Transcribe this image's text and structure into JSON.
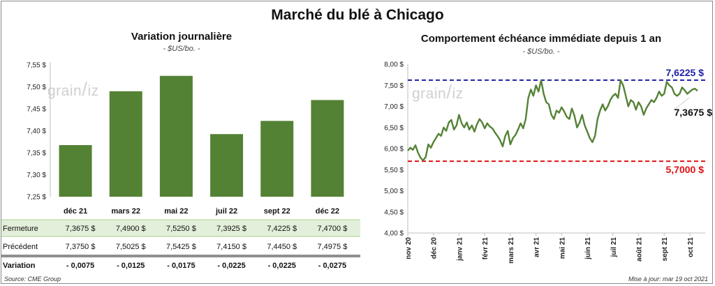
{
  "title": "Marché du blé à Chicago",
  "colors": {
    "bar": "#548235",
    "line": "#548235",
    "max": "#1f1fa8",
    "min": "#e01010",
    "neg": "#e01010",
    "row_bg": "#e2efda"
  },
  "watermark": {
    "left": "grain",
    "slash": "/",
    "right": "iz"
  },
  "footer": {
    "source": "Source: CME Group",
    "updated": "Mise à jour: mar 19 oct 2021"
  },
  "chart_data": [
    {
      "type": "bar",
      "title": "Variation journalière",
      "unit": "- $US/bo. -",
      "categories": [
        "déc 21",
        "mars 22",
        "mai 22",
        "juil 22",
        "sept 22",
        "déc 22"
      ],
      "values": [
        7.3675,
        7.49,
        7.525,
        7.3925,
        7.4225,
        7.47
      ],
      "ylim": [
        7.25,
        7.55
      ],
      "yticks": [
        "7,25 $",
        "7,30 $",
        "7,35 $",
        "7,40 $",
        "7,45 $",
        "7,50 $",
        "7,55 $"
      ],
      "table": {
        "rows": [
          {
            "label": "Fermeture",
            "values": [
              "7,3675  $",
              "7,4900  $",
              "7,5250  $",
              "7,3925  $",
              "7,4225  $",
              "7,4700  $"
            ]
          },
          {
            "label": "Précédent",
            "values": [
              "7,3750  $",
              "7,5025  $",
              "7,5425  $",
              "7,4150  $",
              "7,4450  $",
              "7,4975  $"
            ]
          },
          {
            "label": "Variation",
            "values": [
              "- 0,0075",
              "- 0,0125",
              "- 0,0175",
              "- 0,0225",
              "- 0,0225",
              "- 0,0275"
            ]
          }
        ]
      }
    },
    {
      "type": "line",
      "title": "Comportement  échéance immédiate depuis 1 an",
      "unit": "- $US/bo. -",
      "ylim": [
        4.0,
        8.0
      ],
      "yticks": [
        "4,00 $",
        "4,50 $",
        "5,00 $",
        "5,50 $",
        "6,00 $",
        "6,50 $",
        "7,00 $",
        "7,50 $",
        "8,00 $"
      ],
      "xlim": [
        0,
        11.6
      ],
      "xticks": [
        {
          "x": 0,
          "label": "nov 20"
        },
        {
          "x": 1,
          "label": "déc 20"
        },
        {
          "x": 2,
          "label": "janv 21"
        },
        {
          "x": 3,
          "label": "févr 21"
        },
        {
          "x": 4,
          "label": "mars 21"
        },
        {
          "x": 5,
          "label": "avr 21"
        },
        {
          "x": 6,
          "label": "mai 21"
        },
        {
          "x": 7,
          "label": "juin 21"
        },
        {
          "x": 8,
          "label": "juil 21"
        },
        {
          "x": 9,
          "label": "août 21"
        },
        {
          "x": 10,
          "label": "sept 21"
        },
        {
          "x": 11,
          "label": "oct 21"
        }
      ],
      "series": [
        {
          "x": [
            0,
            0.1,
            0.2,
            0.3,
            0.4,
            0.5,
            0.6,
            0.7,
            0.8,
            0.9,
            1.0,
            1.1,
            1.2,
            1.3,
            1.4,
            1.5,
            1.6,
            1.7,
            1.8,
            1.9,
            2.0,
            2.1,
            2.2,
            2.3,
            2.4,
            2.5,
            2.6,
            2.7,
            2.8,
            2.9,
            3.0,
            3.1,
            3.2,
            3.3,
            3.4,
            3.5,
            3.6,
            3.7,
            3.8,
            3.9,
            4.0,
            4.1,
            4.2,
            4.3,
            4.4,
            4.5,
            4.6,
            4.7,
            4.8,
            4.9,
            5.0,
            5.1,
            5.2,
            5.3,
            5.4,
            5.5,
            5.6,
            5.7,
            5.8,
            5.9,
            6.0,
            6.1,
            6.2,
            6.3,
            6.4,
            6.5,
            6.6,
            6.7,
            6.8,
            6.9,
            7.0,
            7.1,
            7.2,
            7.3,
            7.4,
            7.5,
            7.6,
            7.7,
            7.8,
            7.9,
            8.0,
            8.1,
            8.2,
            8.3,
            8.4,
            8.5,
            8.6,
            8.7,
            8.8,
            8.9,
            9.0,
            9.1,
            9.2,
            9.3,
            9.4,
            9.5,
            9.6,
            9.7,
            9.8,
            9.9,
            10.0,
            10.1,
            10.2,
            10.3,
            10.4,
            10.5,
            10.6,
            10.7,
            10.8,
            10.9,
            11.0,
            11.1,
            11.2,
            11.3
          ],
          "y": [
            5.95,
            6.02,
            5.97,
            6.08,
            5.9,
            5.78,
            5.72,
            5.8,
            6.1,
            6.02,
            6.15,
            6.25,
            6.35,
            6.3,
            6.5,
            6.42,
            6.62,
            6.68,
            6.45,
            6.55,
            6.8,
            6.6,
            6.5,
            6.62,
            6.45,
            6.55,
            6.4,
            6.58,
            6.7,
            6.62,
            6.48,
            6.6,
            6.52,
            6.48,
            6.38,
            6.3,
            6.2,
            6.05,
            6.3,
            6.42,
            6.1,
            6.25,
            6.32,
            6.45,
            6.6,
            6.48,
            6.7,
            7.2,
            7.4,
            7.25,
            7.5,
            7.35,
            7.62,
            7.3,
            7.1,
            7.05,
            6.8,
            6.7,
            6.9,
            6.85,
            6.98,
            6.88,
            6.75,
            6.7,
            6.95,
            6.78,
            6.5,
            6.62,
            6.8,
            6.55,
            6.4,
            6.25,
            6.15,
            6.3,
            6.7,
            6.9,
            7.05,
            6.9,
            7.0,
            7.15,
            7.25,
            7.3,
            7.2,
            7.62,
            7.5,
            7.25,
            7.0,
            7.15,
            7.1,
            6.92,
            7.1,
            7.0,
            6.8,
            6.95,
            7.05,
            7.15,
            7.1,
            7.2,
            7.35,
            7.25,
            7.3,
            7.58,
            7.5,
            7.45,
            7.3,
            7.25,
            7.3,
            7.45,
            7.38,
            7.3,
            7.35,
            7.4,
            7.42,
            7.3675
          ]
        }
      ],
      "hlines": [
        {
          "value": 7.6225,
          "label": "7,6225 $",
          "color": "#1f1fa8"
        },
        {
          "value": 5.7,
          "label": "5,7000 $",
          "color": "#e01010"
        }
      ],
      "last_label": "7,3675 $"
    }
  ]
}
